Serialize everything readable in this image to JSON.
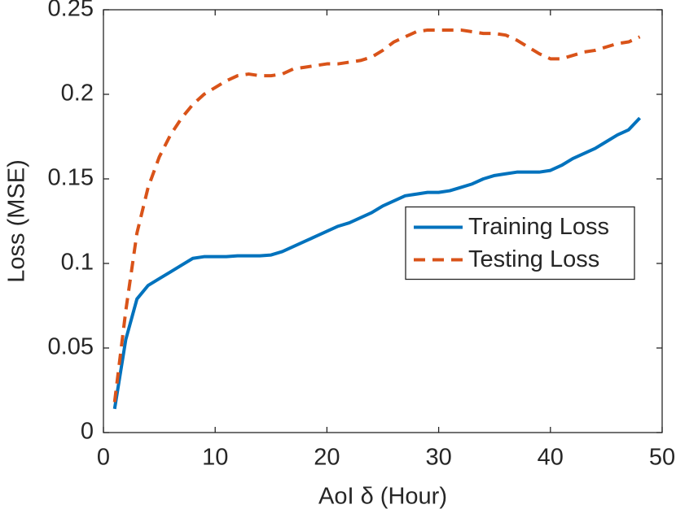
{
  "chart_data": {
    "type": "line",
    "xlabel": "AoI δ (Hour)",
    "ylabel": "Loss (MSE)",
    "x": [
      1,
      2,
      3,
      4,
      5,
      6,
      7,
      8,
      9,
      10,
      11,
      12,
      13,
      14,
      15,
      16,
      17,
      18,
      19,
      20,
      21,
      22,
      23,
      24,
      25,
      26,
      27,
      28,
      29,
      30,
      31,
      32,
      33,
      34,
      35,
      36,
      37,
      38,
      39,
      40,
      41,
      42,
      43,
      44,
      45,
      46,
      47,
      48
    ],
    "series": [
      {
        "name": "Training Loss",
        "color": "#0072bd",
        "linestyle": "solid",
        "values": [
          0.014,
          0.055,
          0.079,
          0.087,
          0.091,
          0.095,
          0.099,
          0.103,
          0.104,
          0.104,
          0.104,
          0.1045,
          0.1045,
          0.1045,
          0.105,
          0.107,
          0.11,
          0.113,
          0.116,
          0.119,
          0.122,
          0.124,
          0.127,
          0.13,
          0.134,
          0.137,
          0.14,
          0.141,
          0.142,
          0.142,
          0.143,
          0.145,
          0.147,
          0.15,
          0.152,
          0.153,
          0.154,
          0.154,
          0.154,
          0.155,
          0.158,
          0.162,
          0.165,
          0.168,
          0.172,
          0.176,
          0.179,
          0.186
        ]
      },
      {
        "name": "Testing Loss",
        "color": "#d95319",
        "linestyle": "dashed",
        "values": [
          0.018,
          0.072,
          0.118,
          0.145,
          0.163,
          0.176,
          0.186,
          0.194,
          0.2,
          0.204,
          0.208,
          0.211,
          0.212,
          0.211,
          0.211,
          0.212,
          0.215,
          0.216,
          0.217,
          0.218,
          0.218,
          0.219,
          0.22,
          0.222,
          0.226,
          0.231,
          0.234,
          0.237,
          0.238,
          0.238,
          0.238,
          0.238,
          0.237,
          0.236,
          0.236,
          0.235,
          0.232,
          0.228,
          0.224,
          0.221,
          0.221,
          0.223,
          0.225,
          0.226,
          0.228,
          0.23,
          0.231,
          0.234
        ]
      }
    ],
    "xlim": [
      0,
      50
    ],
    "xticks": [
      0,
      10,
      20,
      30,
      40,
      50
    ],
    "ylim": [
      0,
      0.25
    ],
    "yticks": [
      0,
      0.05,
      0.1,
      0.15,
      0.2,
      0.25
    ],
    "grid": false,
    "legend": "east"
  }
}
